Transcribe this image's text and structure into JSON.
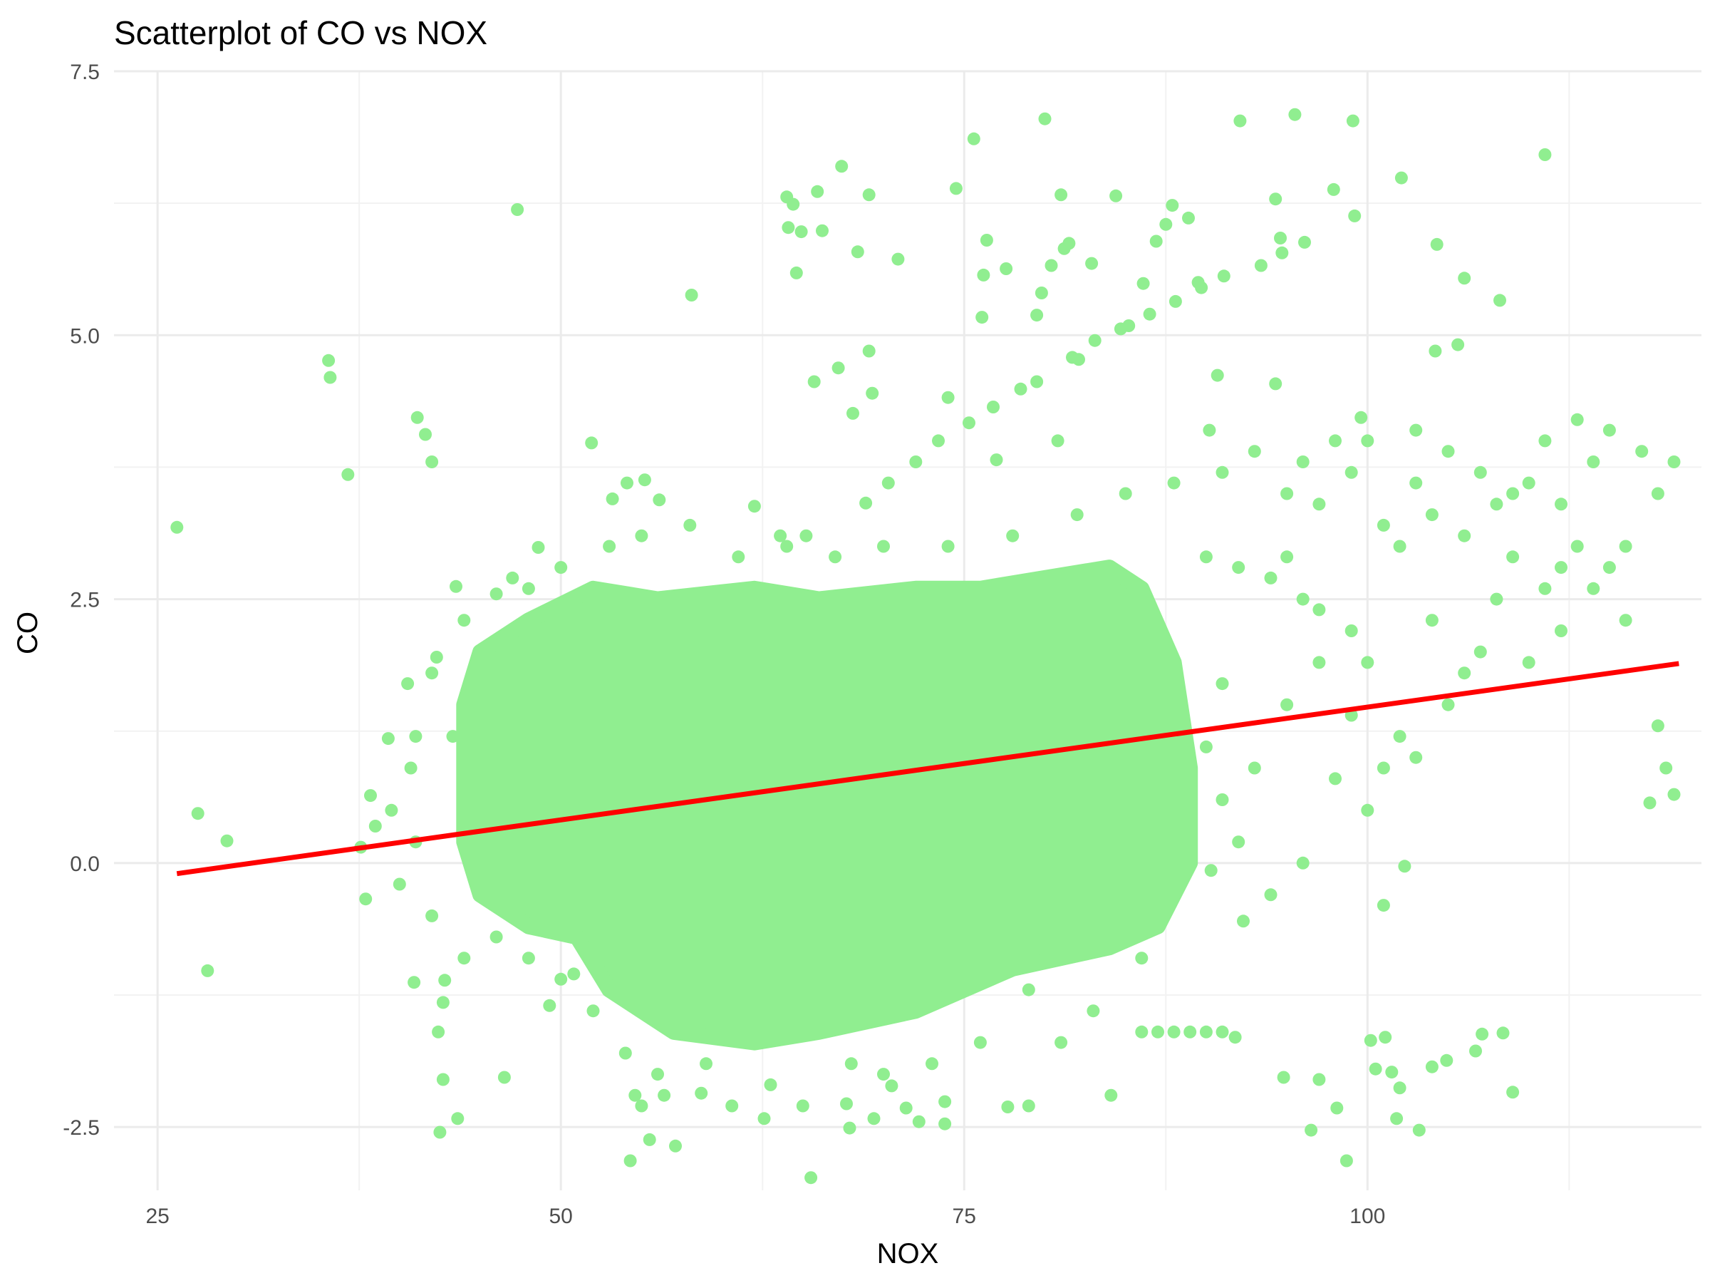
{
  "chart_data": {
    "type": "scatter",
    "title": "Scatterplot of CO vs NOX",
    "xlabel": "NOX",
    "ylabel": "CO",
    "xlim": [
      22.3,
      120.7
    ],
    "ylim": [
      -3.1,
      7.5
    ],
    "x_ticks": [
      25,
      50,
      75,
      100
    ],
    "x_tick_labels": [
      "25",
      "50",
      "75",
      "100"
    ],
    "y_ticks": [
      -2.5,
      0.0,
      2.5,
      5.0,
      7.5
    ],
    "y_tick_labels": [
      "-2.5",
      "0.0",
      "2.5",
      "5.0",
      "7.5"
    ],
    "grid": true,
    "legend": "none",
    "point_color": "#90EE90",
    "line_color": "#FF0000",
    "trend_line": {
      "x": [
        26.2,
        119.3
      ],
      "y": [
        -0.1,
        1.89
      ]
    },
    "core_cloud": [
      [
        44,
        0.2
      ],
      [
        44,
        1.5
      ],
      [
        45,
        2.0
      ],
      [
        48,
        2.3
      ],
      [
        52,
        2.6
      ],
      [
        56,
        2.5
      ],
      [
        62,
        2.6
      ],
      [
        66,
        2.5
      ],
      [
        72,
        2.6
      ],
      [
        76,
        2.6
      ],
      [
        80,
        2.7
      ],
      [
        84,
        2.8
      ],
      [
        86,
        2.6
      ],
      [
        88,
        1.9
      ],
      [
        89,
        0.9
      ],
      [
        89,
        0.0
      ],
      [
        87,
        -0.6
      ],
      [
        84,
        -0.8
      ],
      [
        78,
        -1.0
      ],
      [
        72,
        -1.4
      ],
      [
        66,
        -1.6
      ],
      [
        62,
        -1.7
      ],
      [
        57,
        -1.6
      ],
      [
        53,
        -1.2
      ],
      [
        51,
        -0.7
      ],
      [
        48,
        -0.6
      ],
      [
        45,
        -0.3
      ]
    ],
    "points": [
      [
        26.2,
        3.18
      ],
      [
        27.5,
        0.47
      ],
      [
        28.1,
        -1.02
      ],
      [
        29.3,
        0.21
      ],
      [
        35.6,
        4.76
      ],
      [
        35.7,
        4.6
      ],
      [
        36.8,
        3.68
      ],
      [
        37.6,
        0.15
      ],
      [
        37.9,
        -0.34
      ],
      [
        38.2,
        0.64
      ],
      [
        38.5,
        0.35
      ],
      [
        39.3,
        1.18
      ],
      [
        39.5,
        0.5
      ],
      [
        40.5,
        1.7
      ],
      [
        40.7,
        0.9
      ],
      [
        40.9,
        -1.13
      ],
      [
        41.1,
        4.22
      ],
      [
        41.6,
        4.06
      ],
      [
        42.0,
        3.8
      ],
      [
        42.3,
        1.95
      ],
      [
        42.4,
        -1.6
      ],
      [
        42.5,
        -2.55
      ],
      [
        42.7,
        -2.05
      ],
      [
        42.7,
        -1.32
      ],
      [
        42.8,
        -1.11
      ],
      [
        43.3,
        1.2
      ],
      [
        43.5,
        2.62
      ],
      [
        43.6,
        -2.42
      ],
      [
        44.0,
        1.0
      ],
      [
        46.0,
        2.55
      ],
      [
        46.5,
        -2.03
      ],
      [
        47.3,
        6.19
      ],
      [
        48.0,
        2.6
      ],
      [
        48.6,
        2.99
      ],
      [
        49.3,
        -1.35
      ],
      [
        50.8,
        -1.05
      ],
      [
        51.9,
        3.98
      ],
      [
        53.2,
        3.45
      ],
      [
        54.1,
        3.6
      ],
      [
        55.2,
        3.63
      ],
      [
        56.1,
        3.44
      ],
      [
        54.3,
        -2.82
      ],
      [
        54.6,
        -2.2
      ],
      [
        55.5,
        -2.62
      ],
      [
        55.0,
        -2.3
      ],
      [
        56.4,
        -2.2
      ],
      [
        57.1,
        -2.68
      ],
      [
        58.1,
        5.38
      ],
      [
        58.7,
        -2.18
      ],
      [
        60.6,
        -2.3
      ],
      [
        62.0,
        3.38
      ],
      [
        62.6,
        -2.42
      ],
      [
        63.6,
        3.1
      ],
      [
        64.0,
        6.31
      ],
      [
        64.1,
        6.02
      ],
      [
        64.4,
        6.24
      ],
      [
        64.6,
        5.59
      ],
      [
        64.9,
        5.98
      ],
      [
        65.0,
        -2.3
      ],
      [
        65.2,
        3.1
      ],
      [
        65.5,
        -2.98
      ],
      [
        65.7,
        4.56
      ],
      [
        65.9,
        6.36
      ],
      [
        66.2,
        5.99
      ],
      [
        67.2,
        4.69
      ],
      [
        67.4,
        6.6
      ],
      [
        67.7,
        -2.28
      ],
      [
        67.9,
        -2.51
      ],
      [
        68.1,
        4.26
      ],
      [
        68.4,
        5.79
      ],
      [
        68.9,
        3.41
      ],
      [
        69.1,
        6.33
      ],
      [
        69.1,
        4.85
      ],
      [
        69.3,
        4.45
      ],
      [
        69.4,
        -2.42
      ],
      [
        70.3,
        3.6
      ],
      [
        70.5,
        -2.11
      ],
      [
        70.9,
        5.72
      ],
      [
        71.4,
        -2.32
      ],
      [
        72.0,
        3.8
      ],
      [
        72.2,
        -2.45
      ],
      [
        73.4,
        4.0
      ],
      [
        73.8,
        -2.26
      ],
      [
        73.8,
        -2.47
      ],
      [
        74.0,
        4.41
      ],
      [
        74.5,
        6.39
      ],
      [
        75.3,
        4.17
      ],
      [
        75.6,
        6.86
      ],
      [
        76.1,
        5.17
      ],
      [
        76.2,
        5.57
      ],
      [
        76.4,
        5.9
      ],
      [
        76.8,
        4.32
      ],
      [
        77.0,
        3.82
      ],
      [
        77.6,
        5.63
      ],
      [
        77.7,
        -2.31
      ],
      [
        78.5,
        4.49
      ],
      [
        79.0,
        -2.3
      ],
      [
        79.5,
        4.56
      ],
      [
        79.5,
        5.19
      ],
      [
        79.8,
        5.4
      ],
      [
        80.0,
        7.05
      ],
      [
        80.4,
        5.66
      ],
      [
        80.8,
        4.0
      ],
      [
        81.0,
        6.33
      ],
      [
        81.2,
        5.82
      ],
      [
        81.5,
        5.87
      ],
      [
        81.7,
        4.79
      ],
      [
        82.1,
        4.77
      ],
      [
        82.9,
        5.68
      ],
      [
        83.1,
        4.95
      ],
      [
        84.1,
        -2.2
      ],
      [
        84.4,
        6.32
      ],
      [
        84.7,
        5.06
      ],
      [
        85.2,
        5.09
      ],
      [
        86.1,
        5.49
      ],
      [
        86.5,
        5.2
      ],
      [
        86.9,
        5.89
      ],
      [
        87.5,
        6.05
      ],
      [
        87.9,
        6.23
      ],
      [
        88.1,
        5.32
      ],
      [
        88.9,
        6.11
      ],
      [
        89.5,
        5.5
      ],
      [
        89.7,
        5.45
      ],
      [
        90.2,
        4.1
      ],
      [
        90.3,
        -0.07
      ],
      [
        90.7,
        4.62
      ],
      [
        91.1,
        5.56
      ],
      [
        91.8,
        -1.65
      ],
      [
        92.1,
        7.03
      ],
      [
        92.3,
        -0.55
      ],
      [
        93.4,
        5.66
      ],
      [
        94.3,
        4.54
      ],
      [
        94.3,
        6.29
      ],
      [
        94.6,
        5.92
      ],
      [
        94.7,
        5.78
      ],
      [
        94.8,
        -2.03
      ],
      [
        95.5,
        7.09
      ],
      [
        96.1,
        5.88
      ],
      [
        96.5,
        -2.53
      ],
      [
        97.0,
        -2.05
      ],
      [
        97.9,
        6.38
      ],
      [
        98.1,
        -2.32
      ],
      [
        98.7,
        -2.82
      ],
      [
        99.1,
        7.03
      ],
      [
        99.2,
        6.13
      ],
      [
        99.6,
        4.22
      ],
      [
        100.2,
        -1.68
      ],
      [
        100.5,
        -1.95
      ],
      [
        101.1,
        -1.65
      ],
      [
        101.5,
        -1.98
      ],
      [
        101.8,
        -2.42
      ],
      [
        102.0,
        -2.13
      ],
      [
        102.1,
        6.49
      ],
      [
        102.3,
        -0.03
      ],
      [
        103.2,
        -2.53
      ],
      [
        104.0,
        -1.93
      ],
      [
        104.2,
        4.85
      ],
      [
        104.3,
        5.86
      ],
      [
        104.9,
        -1.87
      ],
      [
        105.6,
        4.91
      ],
      [
        106.0,
        5.54
      ],
      [
        106.7,
        -1.78
      ],
      [
        107.1,
        -1.62
      ],
      [
        108.2,
        5.33
      ],
      [
        108.4,
        -1.61
      ],
      [
        109.0,
        -2.17
      ],
      [
        111.0,
        6.71
      ],
      [
        86,
        -1.6
      ],
      [
        87,
        -1.6
      ],
      [
        88,
        -1.6
      ],
      [
        89,
        -1.6
      ],
      [
        90,
        -1.6
      ],
      [
        91,
        -1.6
      ],
      [
        95,
        2.9
      ],
      [
        97,
        3.4
      ],
      [
        99,
        3.7
      ],
      [
        101,
        3.2
      ],
      [
        103,
        3.6
      ],
      [
        105,
        3.9
      ],
      [
        107,
        3.7
      ],
      [
        109,
        3.5
      ],
      [
        111,
        4.0
      ],
      [
        113,
        4.2
      ],
      [
        115,
        4.1
      ],
      [
        117,
        3.9
      ],
      [
        119,
        3.8
      ],
      [
        112,
        2.8
      ],
      [
        116,
        2.3
      ],
      [
        118,
        1.3
      ],
      [
        119,
        0.65
      ],
      [
        118.5,
        0.9
      ],
      [
        95,
        1.5
      ],
      [
        98,
        0.8
      ],
      [
        100,
        0.5
      ],
      [
        102,
        1.2
      ],
      [
        104,
        2.3
      ],
      [
        106,
        1.8
      ],
      [
        108,
        2.5
      ],
      [
        110,
        1.9
      ],
      [
        112,
        2.2
      ],
      [
        114,
        2.6
      ],
      [
        116,
        3.0
      ],
      [
        117.5,
        0.57
      ],
      [
        96,
        0.0
      ],
      [
        101,
        -0.4
      ],
      [
        92,
        0.2
      ],
      [
        94,
        -0.3
      ],
      [
        93,
        0.9
      ],
      [
        91,
        1.7
      ],
      [
        95,
        3.5
      ],
      [
        97,
        2.4
      ],
      [
        99,
        2.2
      ],
      [
        100,
        1.9
      ],
      [
        102,
        3.0
      ],
      [
        104,
        3.3
      ],
      [
        106,
        3.1
      ],
      [
        108,
        3.4
      ],
      [
        110,
        3.6
      ],
      [
        112,
        3.4
      ],
      [
        114,
        3.8
      ],
      [
        118,
        3.5
      ],
      [
        115,
        2.8
      ],
      [
        113,
        3.0
      ],
      [
        111,
        2.6
      ],
      [
        109,
        2.9
      ],
      [
        107,
        2.0
      ],
      [
        105,
        1.5
      ],
      [
        103,
        1.0
      ],
      [
        101,
        0.9
      ],
      [
        99,
        1.4
      ],
      [
        97,
        1.9
      ],
      [
        96,
        2.5
      ],
      [
        94,
        2.7
      ],
      [
        92,
        2.8
      ],
      [
        90,
        2.9
      ],
      [
        90,
        1.1
      ],
      [
        91,
        0.6
      ],
      [
        89,
        0.3
      ],
      [
        86,
        -0.9
      ],
      [
        83,
        -1.4
      ],
      [
        81,
        -1.7
      ],
      [
        79,
        -1.2
      ],
      [
        76,
        -1.7
      ],
      [
        73,
        -1.9
      ],
      [
        70,
        -2.0
      ],
      [
        68,
        -1.9
      ],
      [
        63,
        -2.1
      ],
      [
        59,
        -1.9
      ],
      [
        56,
        -2.0
      ],
      [
        54,
        -1.8
      ],
      [
        52,
        -1.4
      ],
      [
        50,
        -1.1
      ],
      [
        48,
        -0.9
      ],
      [
        46,
        -0.7
      ],
      [
        44,
        -0.9
      ],
      [
        42,
        -0.5
      ],
      [
        41,
        0.2
      ],
      [
        40,
        -0.2
      ],
      [
        41,
        1.2
      ],
      [
        42,
        1.8
      ],
      [
        44,
        2.3
      ],
      [
        47,
        2.7
      ],
      [
        50,
        2.8
      ],
      [
        53,
        3.0
      ],
      [
        55,
        3.1
      ],
      [
        58,
        3.2
      ],
      [
        61,
        2.9
      ],
      [
        64,
        3.0
      ],
      [
        67,
        2.9
      ],
      [
        70,
        3.0
      ],
      [
        74,
        3.0
      ],
      [
        78,
        3.1
      ],
      [
        82,
        3.3
      ],
      [
        85,
        3.5
      ],
      [
        88,
        3.6
      ],
      [
        91,
        3.7
      ],
      [
        93,
        3.9
      ],
      [
        96,
        3.8
      ],
      [
        98,
        4.0
      ],
      [
        100,
        4.0
      ],
      [
        103,
        4.1
      ]
    ]
  }
}
